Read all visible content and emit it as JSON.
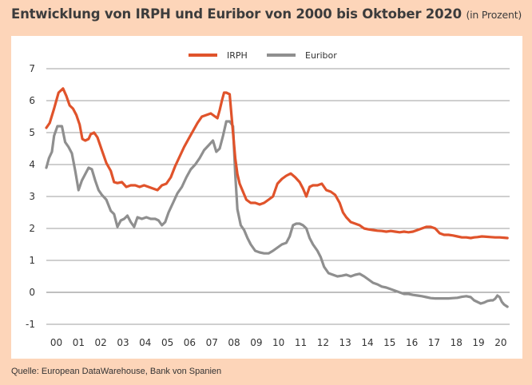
{
  "title": "Entwicklung von IRPH und Euribor von 2000 bis Oktober 2020",
  "subtitle": "(in Prozent)",
  "source": "Quelle: European DataWarehouse, Bank von Spanien",
  "colors": {
    "irph": "#e0532b",
    "euribor": "#8f8f8f",
    "background": "#fdd5b9",
    "grid": "#7f7f7f"
  },
  "chart_data": {
    "type": "line",
    "title": "Entwicklung von IRPH und Euribor von 2000 bis Oktober 2020",
    "xlabel": "",
    "ylabel": "",
    "x_tick_labels": [
      "00",
      "01",
      "02",
      "03",
      "04",
      "05",
      "06",
      "07",
      "08",
      "09",
      "10",
      "11",
      "12",
      "13",
      "14",
      "15",
      "16",
      "17",
      "18",
      "19",
      "20"
    ],
    "y_tick_labels": [
      "7",
      "6",
      "5",
      "4",
      "3",
      "2",
      "1",
      "0",
      "-1"
    ],
    "ylim": [
      -1,
      7
    ],
    "xlim": [
      2000,
      2020.85
    ],
    "grid": "horizontal",
    "legend": "top-center",
    "series": [
      {
        "name": "IRPH",
        "x": [
          2000.0,
          2000.15,
          2000.35,
          2000.55,
          2000.75,
          2000.9,
          2001.05,
          2001.2,
          2001.35,
          2001.5,
          2001.62,
          2001.75,
          2001.9,
          2002.0,
          2002.15,
          2002.3,
          2002.5,
          2002.7,
          2002.9,
          2003.05,
          2003.2,
          2003.4,
          2003.6,
          2003.8,
          2004.0,
          2004.2,
          2004.4,
          2004.6,
          2004.8,
          2005.0,
          2005.2,
          2005.4,
          2005.6,
          2005.8,
          2006.0,
          2006.2,
          2006.4,
          2006.6,
          2006.8,
          2007.0,
          2007.2,
          2007.4,
          2007.6,
          2007.7,
          2007.8,
          2007.9,
          2008.0,
          2008.1,
          2008.25,
          2008.4,
          2008.5,
          2008.6,
          2008.7,
          2008.85,
          2009.0,
          2009.2,
          2009.4,
          2009.6,
          2009.8,
          2010.0,
          2010.2,
          2010.4,
          2010.6,
          2010.8,
          2011.0,
          2011.2,
          2011.4,
          2011.55,
          2011.7,
          2011.85,
          2012.0,
          2012.2,
          2012.4,
          2012.6,
          2012.8,
          2013.0,
          2013.2,
          2013.35,
          2013.5,
          2013.7,
          2013.9,
          2014.1,
          2014.3,
          2014.5,
          2014.7,
          2014.9,
          2015.1,
          2015.3,
          2015.5,
          2015.7,
          2015.9,
          2016.1,
          2016.3,
          2016.5,
          2016.7,
          2016.9,
          2017.1,
          2017.3,
          2017.5,
          2017.7,
          2017.9,
          2018.1,
          2018.3,
          2018.5,
          2018.7,
          2018.9,
          2019.1,
          2019.25,
          2019.4,
          2019.6,
          2019.8,
          2020.0,
          2020.2,
          2020.4,
          2020.6,
          2020.75
        ],
        "values": [
          5.15,
          5.3,
          5.75,
          6.25,
          6.38,
          6.15,
          5.85,
          5.75,
          5.55,
          5.25,
          4.8,
          4.75,
          4.8,
          4.95,
          5.0,
          4.85,
          4.45,
          4.05,
          3.8,
          3.45,
          3.42,
          3.45,
          3.3,
          3.35,
          3.35,
          3.3,
          3.35,
          3.3,
          3.25,
          3.2,
          3.35,
          3.4,
          3.6,
          3.95,
          4.25,
          4.55,
          4.8,
          5.05,
          5.3,
          5.5,
          5.55,
          5.6,
          5.5,
          5.45,
          5.7,
          6.0,
          6.25,
          6.25,
          6.2,
          5.0,
          4.2,
          3.7,
          3.4,
          3.15,
          2.9,
          2.8,
          2.8,
          2.75,
          2.8,
          2.9,
          3.0,
          3.4,
          3.55,
          3.65,
          3.72,
          3.6,
          3.45,
          3.25,
          3.0,
          3.3,
          3.35,
          3.35,
          3.4,
          3.2,
          3.15,
          3.05,
          2.8,
          2.5,
          2.35,
          2.2,
          2.15,
          2.1,
          2.0,
          1.97,
          1.95,
          1.93,
          1.92,
          1.9,
          1.92,
          1.9,
          1.88,
          1.9,
          1.88,
          1.9,
          1.95,
          2.0,
          2.05,
          2.05,
          2.0,
          1.85,
          1.8,
          1.8,
          1.78,
          1.75,
          1.72,
          1.72,
          1.7,
          1.72,
          1.73,
          1.75,
          1.74,
          1.73,
          1.72,
          1.72,
          1.71,
          1.7
        ],
        "color": "#e0532b"
      },
      {
        "name": "Euribor",
        "x": [
          2000.0,
          2000.12,
          2000.25,
          2000.35,
          2000.5,
          2000.7,
          2000.85,
          2001.0,
          2001.15,
          2001.3,
          2001.45,
          2001.6,
          2001.75,
          2001.9,
          2002.05,
          2002.2,
          2002.35,
          2002.5,
          2002.7,
          2002.9,
          2003.05,
          2003.2,
          2003.35,
          2003.5,
          2003.65,
          2003.8,
          2003.95,
          2004.1,
          2004.3,
          2004.5,
          2004.7,
          2004.9,
          2005.05,
          2005.2,
          2005.35,
          2005.5,
          2005.7,
          2005.9,
          2006.1,
          2006.3,
          2006.5,
          2006.7,
          2006.9,
          2007.1,
          2007.3,
          2007.5,
          2007.65,
          2007.8,
          2007.95,
          2008.1,
          2008.25,
          2008.4,
          2008.5,
          2008.6,
          2008.75,
          2008.9,
          2009.05,
          2009.2,
          2009.4,
          2009.6,
          2009.8,
          2010.0,
          2010.2,
          2010.4,
          2010.6,
          2010.8,
          2010.95,
          2011.1,
          2011.25,
          2011.4,
          2011.55,
          2011.7,
          2011.85,
          2012.0,
          2012.2,
          2012.35,
          2012.5,
          2012.7,
          2012.9,
          2013.1,
          2013.3,
          2013.5,
          2013.7,
          2013.9,
          2014.1,
          2014.3,
          2014.5,
          2014.7,
          2014.9,
          2015.1,
          2015.3,
          2015.5,
          2015.7,
          2015.9,
          2016.1,
          2016.3,
          2016.5,
          2016.7,
          2016.9,
          2017.1,
          2017.3,
          2017.5,
          2017.7,
          2017.9,
          2018.1,
          2018.3,
          2018.5,
          2018.7,
          2018.9,
          2019.1,
          2019.25,
          2019.4,
          2019.55,
          2019.7,
          2019.85,
          2020.0,
          2020.1,
          2020.2,
          2020.3,
          2020.4,
          2020.5,
          2020.6,
          2020.75
        ],
        "values": [
          3.9,
          4.2,
          4.4,
          4.9,
          5.2,
          5.2,
          4.7,
          4.55,
          4.35,
          3.8,
          3.2,
          3.5,
          3.7,
          3.9,
          3.85,
          3.5,
          3.2,
          3.05,
          2.9,
          2.55,
          2.45,
          2.05,
          2.25,
          2.3,
          2.4,
          2.2,
          2.05,
          2.35,
          2.3,
          2.35,
          2.3,
          2.3,
          2.25,
          2.1,
          2.2,
          2.5,
          2.8,
          3.1,
          3.3,
          3.6,
          3.85,
          4.0,
          4.2,
          4.45,
          4.6,
          4.75,
          4.4,
          4.5,
          4.9,
          5.35,
          5.35,
          5.2,
          3.7,
          2.6,
          2.1,
          1.95,
          1.7,
          1.5,
          1.3,
          1.25,
          1.22,
          1.22,
          1.3,
          1.4,
          1.5,
          1.55,
          1.75,
          2.1,
          2.15,
          2.15,
          2.1,
          2.0,
          1.7,
          1.5,
          1.3,
          1.1,
          0.8,
          0.6,
          0.55,
          0.5,
          0.52,
          0.55,
          0.5,
          0.55,
          0.58,
          0.5,
          0.4,
          0.3,
          0.25,
          0.18,
          0.15,
          0.1,
          0.05,
          0.0,
          -0.05,
          -0.05,
          -0.08,
          -0.1,
          -0.12,
          -0.15,
          -0.18,
          -0.19,
          -0.19,
          -0.19,
          -0.19,
          -0.18,
          -0.17,
          -0.14,
          -0.12,
          -0.15,
          -0.25,
          -0.3,
          -0.35,
          -0.32,
          -0.27,
          -0.25,
          -0.25,
          -0.2,
          -0.1,
          -0.15,
          -0.3,
          -0.38,
          -0.45
        ]
      }
    ]
  }
}
